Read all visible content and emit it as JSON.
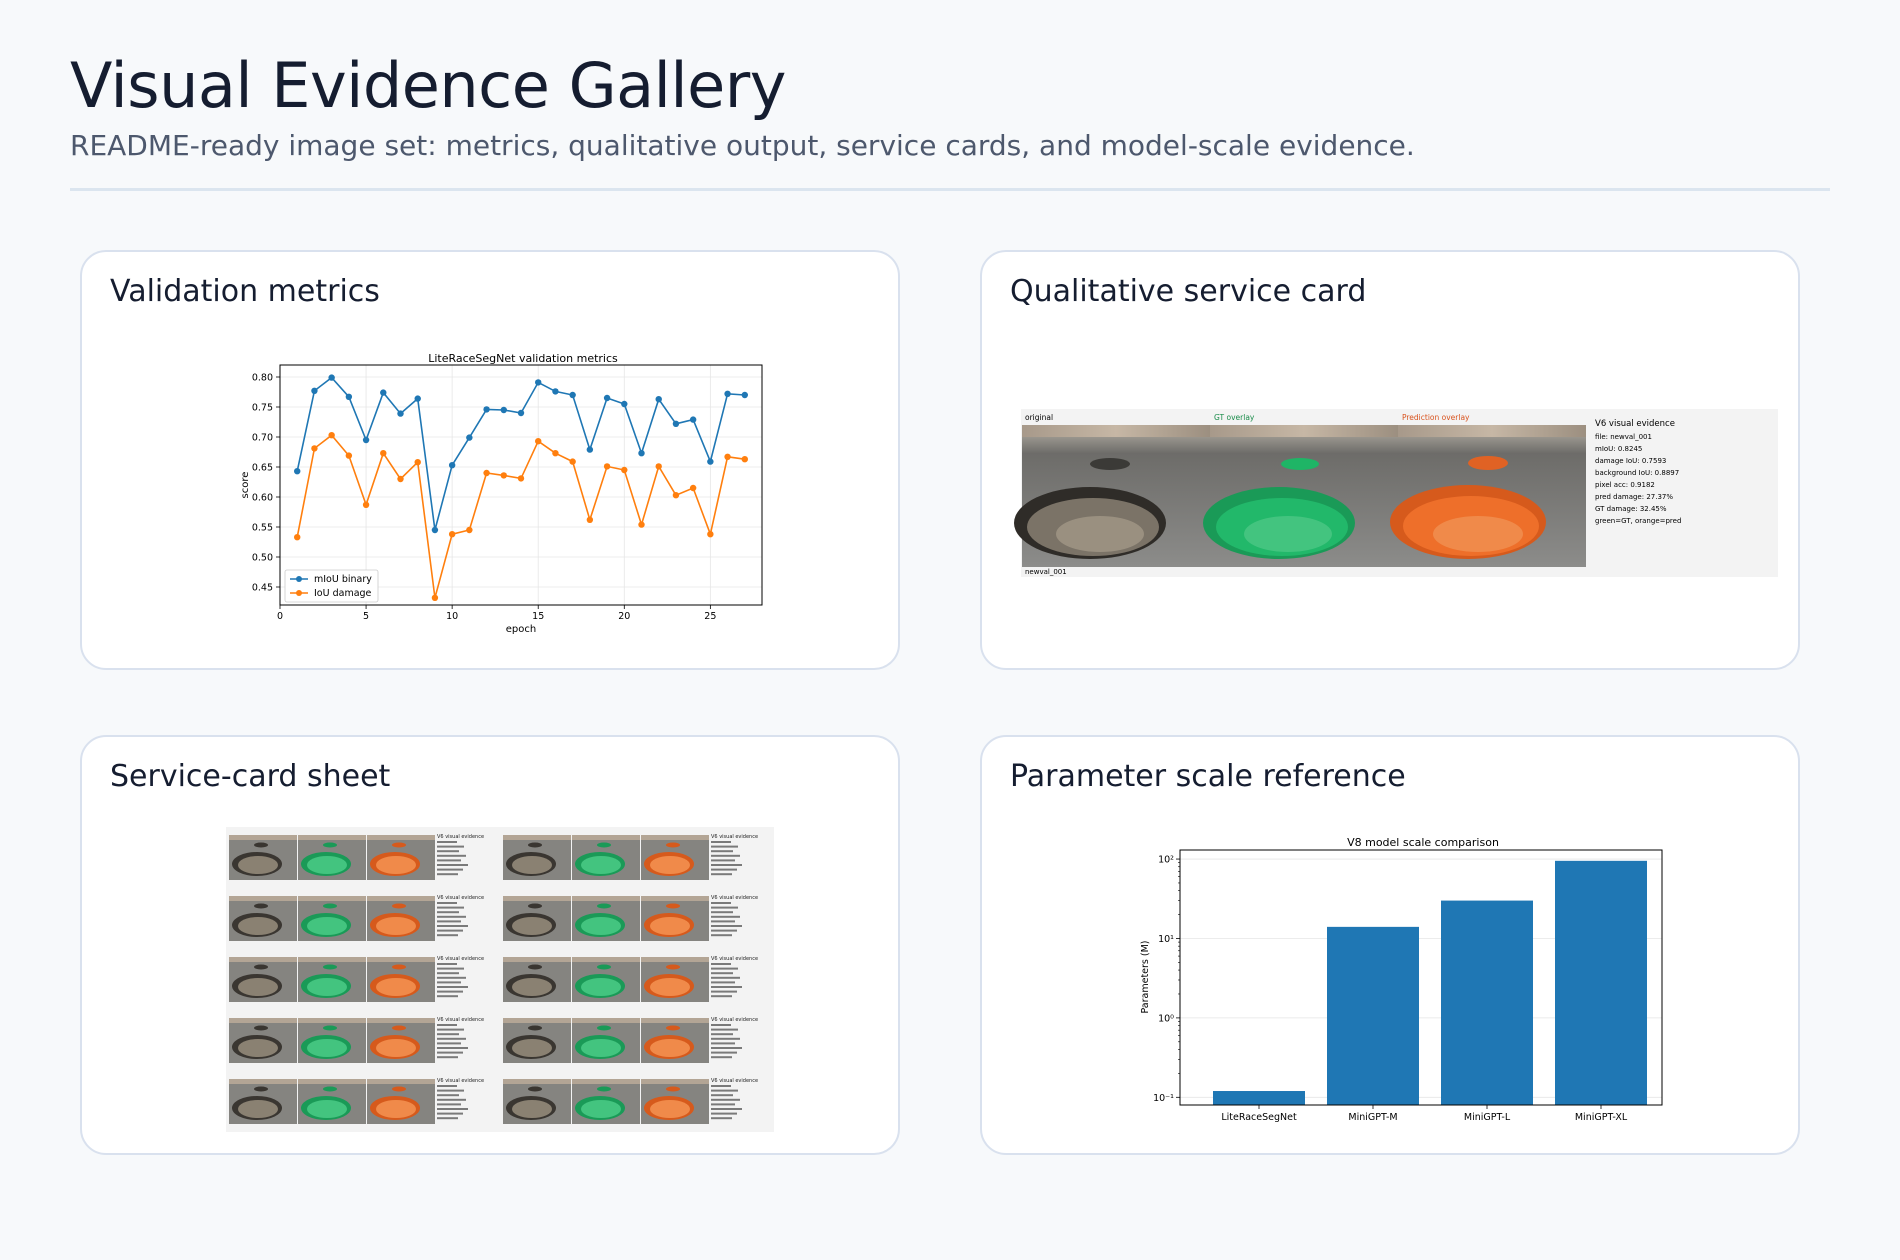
{
  "header": {
    "title": "Visual Evidence Gallery",
    "subtitle": "README-ready image set: metrics, qualitative output, service cards, and model-scale evidence."
  },
  "cards": {
    "metrics": {
      "title": "Validation metrics"
    },
    "qualitative": {
      "title": "Qualitative service card"
    },
    "sheet": {
      "title": "Service-card sheet"
    },
    "scale": {
      "title": "Parameter scale reference"
    }
  },
  "service_card": {
    "panel_original": "original",
    "panel_gt": "GT overlay",
    "panel_pred": "Prediction overlay",
    "caption": "newval_001",
    "info_title": "V6 visual evidence",
    "info_lines": [
      "file: newval_001",
      "mIoU: 0.8245",
      "damage IoU: 0.7593",
      "background IoU: 0.8897",
      "pixel acc: 0.9182",
      "pred damage: 27.37%",
      "GT damage: 32.45%",
      "green=GT, orange=pred"
    ]
  },
  "colors": {
    "blue": "#1f77b4",
    "orange": "#ff7f0e",
    "gt_green": "#1fb566",
    "pred_orange": "#f06a1e"
  },
  "chart_data": [
    {
      "type": "line",
      "title": "LiteRaceSegNet validation metrics",
      "xlabel": "epoch",
      "ylabel": "score",
      "xlim": [
        0,
        28
      ],
      "ylim": [
        0.42,
        0.82
      ],
      "xticks": [
        0,
        5,
        10,
        15,
        20,
        25
      ],
      "yticks": [
        0.45,
        0.5,
        0.55,
        0.6,
        0.65,
        0.7,
        0.75,
        0.8
      ],
      "legend": "lower-left",
      "grid": true,
      "x": [
        1,
        2,
        3,
        4,
        5,
        6,
        7,
        8,
        9,
        10,
        11,
        12,
        13,
        14,
        15,
        16,
        17,
        18,
        19,
        20,
        21,
        22,
        23,
        24,
        25,
        26,
        27
      ],
      "series": [
        {
          "name": "mIoU binary",
          "color": "#1f77b4",
          "values": [
            0.643,
            0.777,
            0.799,
            0.767,
            0.695,
            0.774,
            0.739,
            0.764,
            0.545,
            0.653,
            0.699,
            0.746,
            0.745,
            0.74,
            0.791,
            0.776,
            0.77,
            0.679,
            0.765,
            0.755,
            0.673,
            0.763,
            0.722,
            0.729,
            0.659,
            0.772,
            0.77
          ]
        },
        {
          "name": "IoU damage",
          "color": "#ff7f0e",
          "values": [
            0.533,
            0.681,
            0.703,
            0.669,
            0.587,
            0.673,
            0.63,
            0.658,
            0.432,
            0.538,
            0.545,
            0.64,
            0.636,
            0.631,
            0.693,
            0.673,
            0.659,
            0.562,
            0.651,
            0.645,
            0.554,
            0.651,
            0.603,
            0.615,
            0.538,
            0.667,
            0.663
          ]
        }
      ]
    },
    {
      "type": "bar",
      "title": "V8 model scale comparison",
      "ylabel": "Parameters (M)",
      "yscale": "log",
      "ylim": [
        0.08,
        130
      ],
      "yticks": [
        "10⁻¹",
        "10⁰",
        "10¹",
        "10²"
      ],
      "grid": true,
      "categories": [
        "LiteRaceSegNet",
        "MiniGPT-M",
        "MiniGPT-L",
        "MiniGPT-XL"
      ],
      "values": [
        0.12,
        14,
        30,
        95
      ],
      "color": "#1f77b4"
    }
  ]
}
